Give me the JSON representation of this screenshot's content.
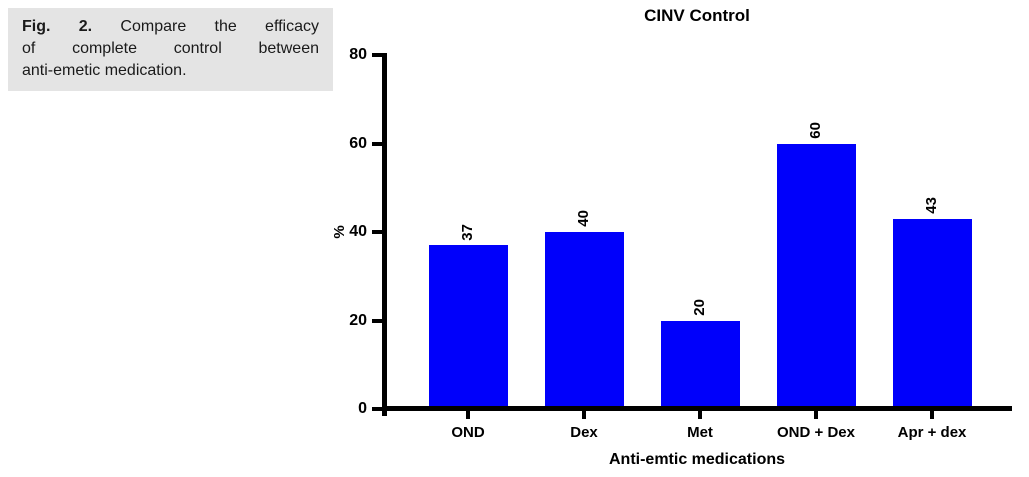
{
  "caption": {
    "label": "Fig. 2.",
    "line1_rest": "Compare the efficacy",
    "line2": "of complete control between",
    "line3": "anti-emetic medication.",
    "full_text": "Fig. 2. Compare the efficacy of complete control between anti-emetic medication."
  },
  "chart_data": {
    "type": "bar",
    "title": "CINV Control",
    "categories": [
      "OND",
      "Dex",
      "Met",
      "OND + Dex",
      "Apr + dex"
    ],
    "values": [
      37,
      40,
      20,
      60,
      43
    ],
    "bar_labels": [
      "37",
      "40",
      "20",
      "60",
      "43"
    ],
    "xlabel": "Anti-emtic medications",
    "ylabel": "%",
    "ylim": [
      0,
      80
    ],
    "yticks": [
      0,
      20,
      40,
      60,
      80
    ],
    "grid": false,
    "legend": false,
    "value_label_rotation_deg": 90,
    "bar_color": "#0000FB",
    "axis_color": "#000000"
  },
  "colors": {
    "caption_background": "#E4E4E4",
    "bar": "#0000FB",
    "axis": "#000000",
    "text": "#000000",
    "page_background": "#FFFFFF"
  }
}
